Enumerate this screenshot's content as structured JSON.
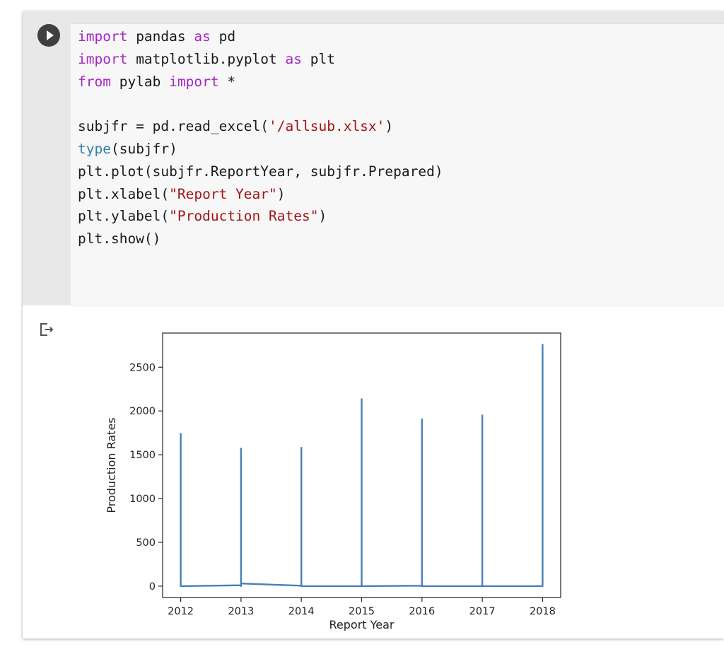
{
  "code_lines": [
    [
      {
        "t": "import",
        "c": "kw"
      },
      {
        "t": " pandas "
      },
      {
        "t": "as",
        "c": "kw"
      },
      {
        "t": " pd"
      }
    ],
    [
      {
        "t": "import",
        "c": "kw"
      },
      {
        "t": " matplotlib.pyplot "
      },
      {
        "t": "as",
        "c": "kw"
      },
      {
        "t": " plt"
      }
    ],
    [
      {
        "t": "from",
        "c": "kw"
      },
      {
        "t": " pylab "
      },
      {
        "t": "import",
        "c": "kw"
      },
      {
        "t": " *"
      }
    ],
    [],
    [
      {
        "t": "subjfr = pd.read_excel("
      },
      {
        "t": "'/allsub.xlsx'",
        "c": "st"
      },
      {
        "t": ")"
      }
    ],
    [
      {
        "t": "type",
        "c": "bi"
      },
      {
        "t": "(subjfr)"
      }
    ],
    [
      {
        "t": "plt.plot(subjfr.ReportYear, subjfr.Prepared)"
      }
    ],
    [
      {
        "t": "plt.xlabel("
      },
      {
        "t": "\"Report Year\"",
        "c": "st"
      },
      {
        "t": ")"
      }
    ],
    [
      {
        "t": "plt.ylabel("
      },
      {
        "t": "\"Production Rates\"",
        "c": "st"
      },
      {
        "t": ")"
      }
    ],
    [
      {
        "t": "plt.show()"
      }
    ]
  ],
  "icons": {
    "run": "play-icon",
    "output": "output-arrow-icon"
  },
  "colors": {
    "keyword": "#a626c5",
    "builtin": "#2f7fa8",
    "string": "#a31515",
    "line": "#4a7fb5"
  },
  "chart_data": {
    "type": "line",
    "title": "",
    "xlabel": "Report Year",
    "ylabel": "Production Rates",
    "xlim": [
      2011.7,
      2018.3
    ],
    "ylim": [
      -130,
      2890
    ],
    "xticks": [
      2012,
      2013,
      2014,
      2015,
      2016,
      2017,
      2018
    ],
    "yticks": [
      0,
      500,
      1000,
      1500,
      2000,
      2500
    ],
    "grid": false,
    "series": [
      {
        "x": [
          2012,
          2012,
          2012,
          2013,
          2013,
          2013,
          2013,
          2014,
          2014,
          2014,
          2015,
          2015,
          2015,
          2016,
          2016,
          2016,
          2017,
          2017,
          2017,
          2018,
          2018
        ],
        "y": [
          0,
          1740,
          0,
          10,
          1570,
          0,
          30,
          5,
          1580,
          0,
          0,
          2135,
          0,
          5,
          1905,
          0,
          0,
          1950,
          0,
          0,
          2765
        ]
      }
    ]
  }
}
